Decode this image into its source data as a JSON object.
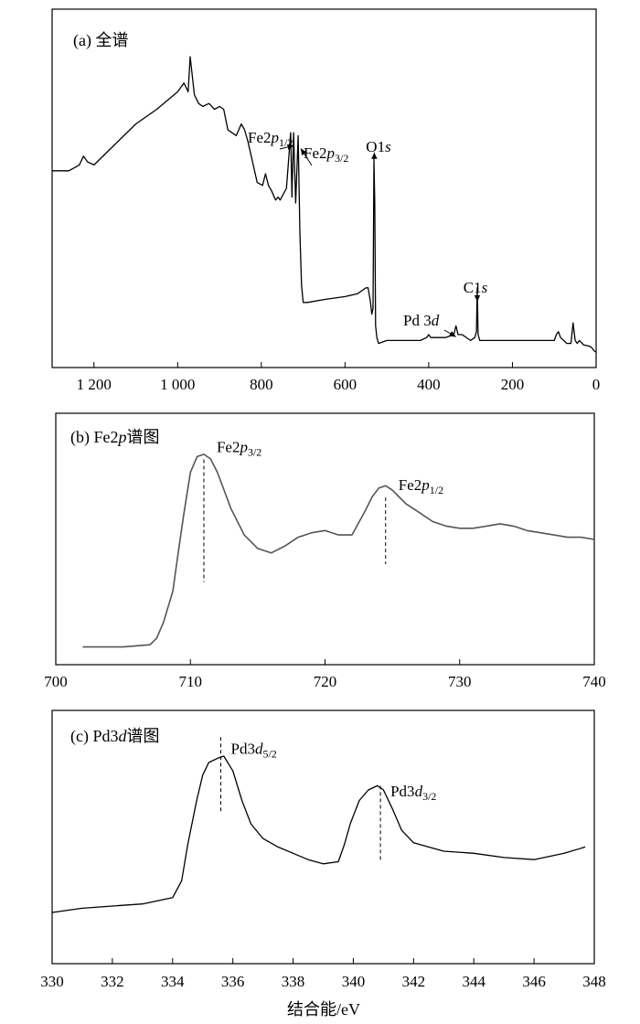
{
  "chart_data": [
    {
      "type": "line",
      "panel_label": "(a) 全谱",
      "x_reversed": true,
      "xlim": [
        1300,
        0
      ],
      "x_ticks": [
        1200,
        1000,
        800,
        600,
        400,
        200,
        0
      ],
      "x_tick_labels": [
        "1 200",
        "1 000",
        "800",
        "600",
        "400",
        "200",
        "0"
      ],
      "ylim": [
        0,
        100
      ],
      "grid": false,
      "annotations": [
        {
          "id": "fe12",
          "prefix": "Fe2",
          "italic": "p",
          "sub": "1/2",
          "x": 722,
          "y": 69
        },
        {
          "id": "fe32",
          "prefix": "Fe2",
          "italic": "p",
          "sub": "3/2",
          "x": 708,
          "y": 68
        },
        {
          "id": "o1s",
          "prefix": "O1",
          "italic": "s",
          "sub": "",
          "x": 530,
          "y": 66
        },
        {
          "id": "c1s",
          "prefix": "C1",
          "italic": "s",
          "sub": "",
          "x": 284,
          "y": 15
        },
        {
          "id": "pd3d",
          "prefix": "Pd 3",
          "italic": "d",
          "sub": "",
          "x": 335,
          "y": 3
        }
      ],
      "series": [
        {
          "x": [
            1300,
            1260,
            1235,
            1225,
            1215,
            1200,
            1150,
            1100,
            1050,
            1000,
            985,
            975,
            970,
            960,
            950,
            940,
            925,
            912,
            900,
            890,
            880,
            860,
            848,
            840,
            832,
            810,
            797,
            790,
            783,
            775,
            766,
            760,
            755,
            740,
            730,
            727,
            723,
            718,
            712,
            708,
            704,
            700,
            690,
            650,
            600,
            570,
            560,
            550,
            545,
            540,
            536,
            533,
            531,
            529,
            527,
            524,
            520,
            500,
            450,
            420,
            405,
            400,
            395,
            360,
            340,
            335,
            330,
            320,
            300,
            290,
            286,
            284,
            282,
            278,
            270,
            200,
            120,
            100,
            95,
            90,
            85,
            70,
            60,
            55,
            50,
            45,
            40,
            30,
            15,
            10,
            5,
            0
          ],
          "y": [
            61,
            61,
            63,
            66,
            64,
            63,
            70,
            77,
            82,
            88,
            91,
            88,
            100,
            87,
            84,
            83,
            84,
            82,
            83,
            82,
            75,
            73,
            77,
            75,
            71,
            57,
            56,
            60,
            56,
            54,
            51,
            52,
            51,
            55,
            74,
            52,
            74,
            50,
            73,
            40,
            22,
            16,
            16,
            17,
            18,
            19,
            20,
            21,
            21,
            17,
            12,
            14,
            65,
            50,
            8,
            4,
            2,
            3,
            3,
            3,
            4,
            5,
            4,
            4,
            5,
            8,
            5,
            5,
            3,
            4,
            6,
            21,
            5,
            3,
            3,
            3,
            3,
            3,
            5,
            6,
            4,
            2,
            2,
            9,
            3,
            2,
            3,
            1.5,
            1,
            0.5,
            -0.5,
            -1
          ]
        }
      ]
    },
    {
      "type": "line",
      "panel_label_prefix": "(b) Fe2",
      "panel_label_italic": "p",
      "panel_label_suffix": "谱图",
      "xlim": [
        700,
        740
      ],
      "x_ticks": [
        700,
        710,
        720,
        730,
        740
      ],
      "x_tick_labels": [
        "700",
        "710",
        "720",
        "730",
        "740"
      ],
      "ylim": [
        0,
        100
      ],
      "grid": false,
      "peaks": [
        {
          "id": "fe32",
          "prefix": "Fe2",
          "italic": "p",
          "sub": "3/2",
          "x": 711,
          "y_label": 90,
          "y_line_bottom": 32
        },
        {
          "id": "fe12",
          "prefix": "Fe2",
          "italic": "p",
          "sub": "1/2",
          "x": 724.5,
          "y_label": 73,
          "y_line_bottom": 40
        }
      ],
      "series": [
        {
          "x": [
            702,
            705,
            707,
            707.5,
            708,
            708.7,
            709,
            709.5,
            710,
            710.5,
            711,
            711.5,
            712,
            712.5,
            713,
            714,
            715,
            716,
            717,
            718,
            719,
            720,
            721,
            722,
            723,
            723.5,
            724,
            724.5,
            725,
            725.5,
            726,
            727,
            728,
            729,
            730,
            731,
            732,
            733,
            734,
            735,
            736,
            737,
            738,
            739,
            740
          ],
          "y": [
            3,
            3,
            4,
            7,
            14,
            28,
            41,
            62,
            81,
            88,
            89,
            87,
            81,
            73,
            65,
            53,
            47,
            45,
            48,
            52,
            54,
            55,
            53,
            53,
            64,
            70,
            74,
            75,
            73,
            70,
            67,
            63,
            59,
            57,
            56,
            56,
            57,
            58,
            57,
            55,
            54,
            53,
            52,
            52,
            51
          ]
        }
      ]
    },
    {
      "type": "line",
      "panel_label_prefix": "(c) Pd3",
      "panel_label_italic": "d",
      "panel_label_suffix": "谱图",
      "xlim": [
        330,
        348
      ],
      "x_ticks": [
        330,
        332,
        334,
        336,
        338,
        340,
        342,
        344,
        346,
        348
      ],
      "x_tick_labels": [
        "330",
        "332",
        "334",
        "336",
        "338",
        "340",
        "342",
        "344",
        "346",
        "348"
      ],
      "xlabel": "结合能/eV",
      "ylim": [
        0,
        100
      ],
      "grid": false,
      "peaks": [
        {
          "id": "pd52",
          "prefix": "Pd3",
          "italic": "d",
          "sub": "5/2",
          "x": 335.6,
          "y_label": 88,
          "y_top": 96,
          "y_line_bottom": 61
        },
        {
          "id": "pd32",
          "prefix": "Pd3",
          "italic": "d",
          "sub": "3/2",
          "x": 340.9,
          "y_label": 68,
          "y_top": 73,
          "y_line_bottom": 37
        }
      ],
      "series": [
        {
          "x": [
            330,
            331,
            332,
            333,
            334,
            334.3,
            334.5,
            334.8,
            335,
            335.2,
            335.5,
            335.7,
            336,
            336.3,
            336.6,
            337,
            337.5,
            338,
            338.5,
            339,
            339.5,
            339.7,
            339.9,
            340.2,
            340.5,
            340.8,
            341,
            341.3,
            341.6,
            342,
            342.5,
            343,
            344,
            345,
            346,
            347,
            347.7
          ],
          "y": [
            13,
            15,
            16,
            17,
            20,
            28,
            45,
            66,
            78,
            84,
            86,
            87,
            80,
            66,
            55,
            48,
            44,
            41,
            38,
            36,
            37,
            45,
            55,
            66,
            71,
            73,
            71,
            62,
            52,
            46,
            44,
            42,
            41,
            39,
            38,
            41,
            44
          ]
        }
      ]
    }
  ]
}
